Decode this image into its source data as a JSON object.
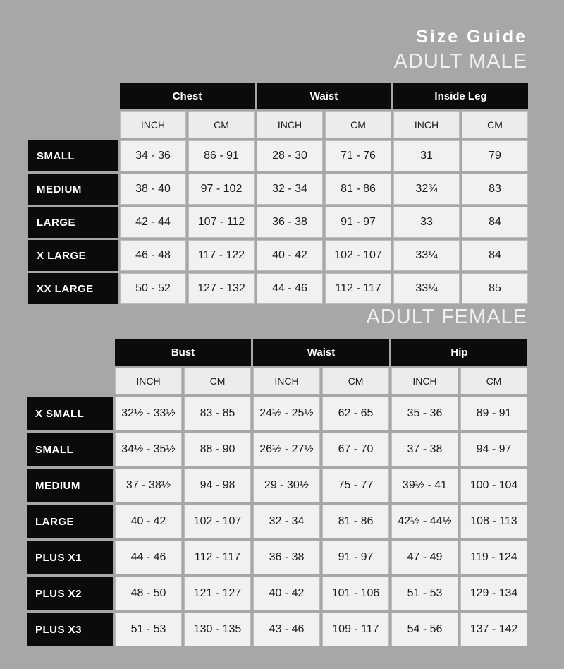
{
  "page": {
    "title": "Size Guide"
  },
  "colors": {
    "background": "#a7a7a7",
    "header_black": "#0b0b0b",
    "cell_background": "#f1f1f1",
    "unit_cell_background": "#ececec",
    "heading_text": "#ffffff"
  },
  "chart_data": [
    {
      "type": "table",
      "title": "ADULT MALE",
      "column_groups": [
        "Chest",
        "Waist",
        "Inside Leg"
      ],
      "columns": [
        "INCH",
        "CM",
        "INCH",
        "CM",
        "INCH",
        "CM"
      ],
      "rows": [
        {
          "label": "SMALL",
          "values": [
            "34 - 36",
            "86 - 91",
            "28 - 30",
            "71 - 76",
            "31",
            "79"
          ]
        },
        {
          "label": "MEDIUM",
          "values": [
            "38 - 40",
            "97 - 102",
            "32 - 34",
            "81 - 86",
            "32¾",
            "83"
          ]
        },
        {
          "label": "LARGE",
          "values": [
            "42 - 44",
            "107 - 112",
            "36 - 38",
            "91 - 97",
            "33",
            "84"
          ]
        },
        {
          "label": "X LARGE",
          "values": [
            "46 - 48",
            "117 - 122",
            "40 - 42",
            "102 - 107",
            "33¼",
            "84"
          ]
        },
        {
          "label": "XX LARGE",
          "values": [
            "50 - 52",
            "127 - 132",
            "44 - 46",
            "112 - 117",
            "33¼",
            "85"
          ]
        }
      ]
    },
    {
      "type": "table",
      "title": "ADULT FEMALE",
      "column_groups": [
        "Bust",
        "Waist",
        "Hip"
      ],
      "columns": [
        "INCH",
        "CM",
        "INCH",
        "CM",
        "INCH",
        "CM"
      ],
      "rows": [
        {
          "label": "X SMALL",
          "values": [
            "32½ - 33½",
            "83 - 85",
            "24½ - 25½",
            "62 - 65",
            "35 - 36",
            "89 - 91"
          ]
        },
        {
          "label": "SMALL",
          "values": [
            "34½ - 35½",
            "88 - 90",
            "26½ - 27½",
            "67 - 70",
            "37 - 38",
            "94 - 97"
          ]
        },
        {
          "label": "MEDIUM",
          "values": [
            "37 - 38½",
            "94 - 98",
            "29 - 30½",
            "75 - 77",
            "39½ - 41",
            "100 - 104"
          ]
        },
        {
          "label": "LARGE",
          "values": [
            "40 - 42",
            "102 - 107",
            "32 - 34",
            "81 - 86",
            "42½ - 44½",
            "108 - 113"
          ]
        },
        {
          "label": "PLUS X1",
          "values": [
            "44 - 46",
            "112 - 117",
            "36 - 38",
            "91 - 97",
            "47 - 49",
            "119 - 124"
          ]
        },
        {
          "label": "PLUS X2",
          "values": [
            "48 - 50",
            "121 - 127",
            "40 - 42",
            "101 - 106",
            "51 - 53",
            "129 - 134"
          ]
        },
        {
          "label": "PLUS X3",
          "values": [
            "51 - 53",
            "130 - 135",
            "43 - 46",
            "109 - 117",
            "54 - 56",
            "137 - 142"
          ]
        }
      ]
    }
  ]
}
